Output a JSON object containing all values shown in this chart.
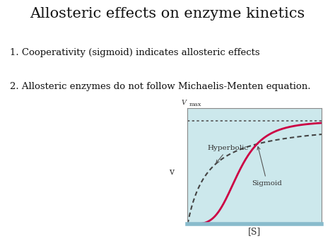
{
  "title": "Allosteric effects on enzyme kinetics",
  "point1": "1. Cooperativity (sigmoid) indicates allosteric effects",
  "point2": "2. Allosteric enzymes do not follow Michaelis-Menten equation.",
  "vmax_label": "V",
  "vmax_sub": "max",
  "v_label": "v",
  "s_label": "[S]",
  "hyperbolic_label": "Hyperbolic",
  "sigmoid_label": "Sigmoid",
  "bg_color": "#ffffff",
  "plot_bg_color": "#cce8ec",
  "hyperbolic_color": "#444444",
  "sigmoid_color": "#cc0044",
  "vmax_line_color": "#555555",
  "title_fontsize": 15,
  "text_fontsize": 9.5,
  "label_fontsize": 8,
  "outer_box_color": "#888888",
  "bottom_bar_color": "#88bbcc"
}
